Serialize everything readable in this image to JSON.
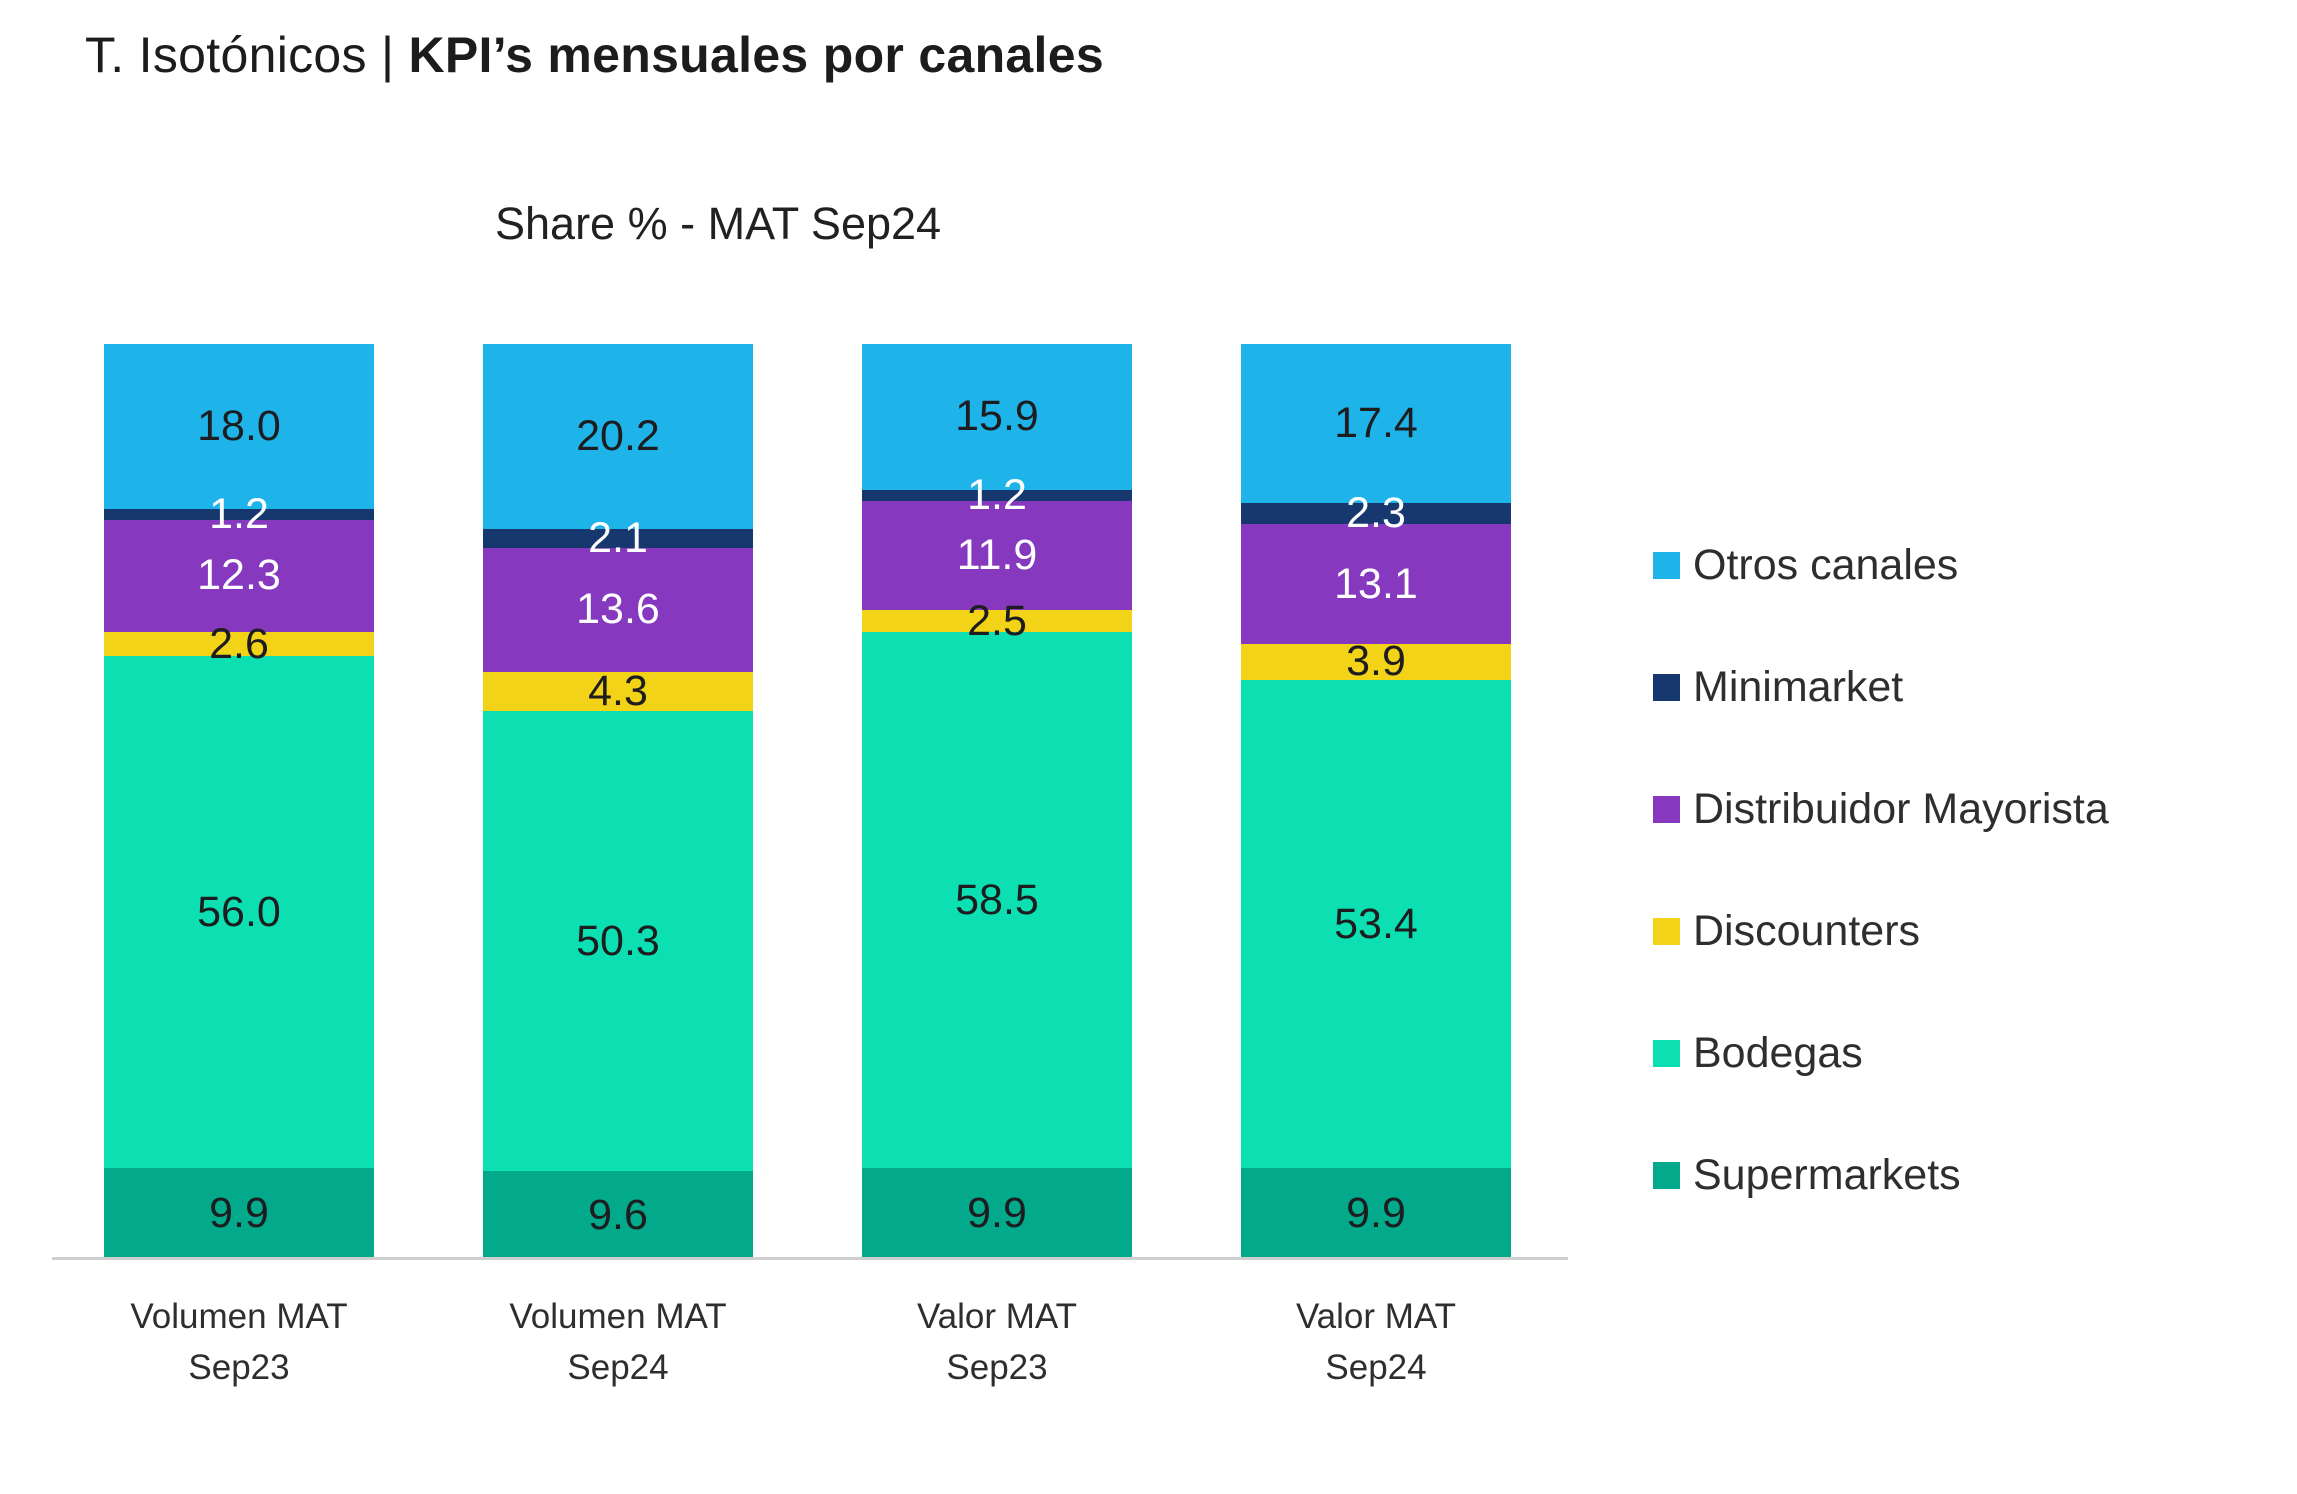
{
  "header": {
    "title_regular": "T. Isotónicos | ",
    "title_bold": "KPI’s mensuales por canales"
  },
  "chart": {
    "subtitle": "Share % - MAT Sep24"
  },
  "chart_data": {
    "type": "bar",
    "stacked": true,
    "title": "Share % - MAT Sep24",
    "categories": [
      "Volumen MAT Sep23",
      "Volumen MAT Sep24",
      "Valor MAT Sep23",
      "Valor MAT Sep24"
    ],
    "tick_labels": [
      "Volumen MAT\nSep23",
      "Volumen MAT\nSep24",
      "Valor MAT Sep23",
      "Valor MAT Sep24"
    ],
    "series": [
      {
        "name": "Supermarkets",
        "color": "#02A98A",
        "label_color": "#1d1d1f",
        "values": [
          9.9,
          9.6,
          9.9,
          9.9
        ]
      },
      {
        "name": "Bodegas",
        "color": "#0CE0B3",
        "label_color": "#1d1d1f",
        "values": [
          56.0,
          50.3,
          58.5,
          53.4
        ]
      },
      {
        "name": "Discounters",
        "color": "#F3D318",
        "label_color": "#1d1d1f",
        "values": [
          2.6,
          4.3,
          2.5,
          3.9
        ]
      },
      {
        "name": "Distribuidor Mayorista",
        "color": "#8639BE",
        "label_color": "#ffffff",
        "values": [
          12.3,
          13.6,
          11.9,
          13.1
        ]
      },
      {
        "name": "Minimarket",
        "color": "#16386F",
        "label_color": "#ffffff",
        "values": [
          1.2,
          2.1,
          1.2,
          2.3
        ]
      },
      {
        "name": "Otros canales",
        "color": "#1EB4EA",
        "label_color": "#1d1d1f",
        "values": [
          18.0,
          20.2,
          15.9,
          17.4
        ]
      }
    ],
    "legend_order_top_to_bottom": [
      "Otros canales",
      "Minimarket",
      "Distribuidor Mayorista",
      "Discounters",
      "Bodegas",
      "Supermarkets"
    ],
    "legend_position": "right",
    "ylim": [
      0,
      100
    ],
    "value_label_format": "0.1f",
    "grid": false
  }
}
